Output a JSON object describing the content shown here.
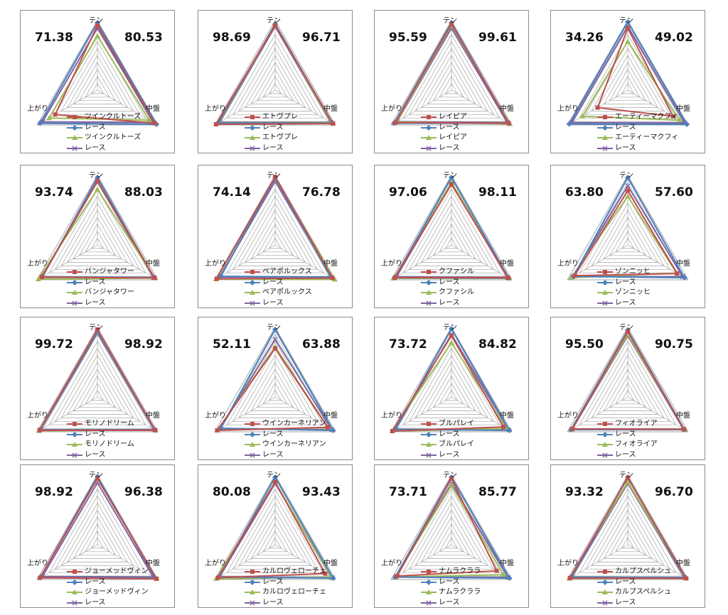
{
  "axes": [
    "テン",
    "中盤",
    "上がり"
  ],
  "colors": {
    "grid": "#a6a6a6",
    "horse": "#c0504d",
    "race": "#4f81bd",
    "horse_normalized": "#9bbb59",
    "race_normalized": "#8064a2"
  },
  "legend_race_label": "レース",
  "chart_data": [
    {
      "type": "radar",
      "title": "ツインクルトーズ",
      "left_score": "71.38",
      "right_score": "80.53",
      "series": [
        {
          "name": "ツインクルトーズ",
          "values": [
            93,
            95,
            70
          ]
        },
        {
          "name": "レース",
          "values": [
            97,
            98,
            95
          ]
        },
        {
          "name": "ツインクルトーズ",
          "values": [
            78,
            86,
            80
          ]
        },
        {
          "name": "レース",
          "values": [
            89,
            93,
            91
          ]
        }
      ]
    },
    {
      "type": "radar",
      "title": "エトヴプレ",
      "left_score": "98.69",
      "right_score": "96.71",
      "series": [
        {
          "name": "エトヴプレ",
          "values": [
            93,
            96,
            98
          ]
        },
        {
          "name": "レース",
          "values": [
            95,
            95,
            94
          ]
        },
        {
          "name": "エトヴプレ",
          "values": [
            94,
            93,
            93
          ]
        },
        {
          "name": "レース",
          "values": [
            92,
            92,
            92
          ]
        }
      ]
    },
    {
      "type": "radar",
      "title": "レイピア",
      "left_score": "95.59",
      "right_score": "99.61",
      "series": [
        {
          "name": "レイピア",
          "values": [
            95,
            95,
            93
          ]
        },
        {
          "name": "レース",
          "values": [
            97,
            95,
            95
          ]
        },
        {
          "name": "レイピア",
          "values": [
            93,
            97,
            91
          ]
        },
        {
          "name": "レース",
          "values": [
            89,
            93,
            90
          ]
        }
      ]
    },
    {
      "type": "radar",
      "title": "エーティーマクフィ",
      "left_score": "34.26",
      "right_score": "49.02",
      "series": [
        {
          "name": "エーティーマクフィ",
          "values": [
            89,
            75,
            50
          ]
        },
        {
          "name": "レース",
          "values": [
            98,
            98,
            97
          ]
        },
        {
          "name": "エーティーマクフィ",
          "values": [
            70,
            86,
            75
          ]
        },
        {
          "name": "レース",
          "values": [
            92,
            94,
            93
          ]
        }
      ]
    },
    {
      "type": "radar",
      "title": "バンジャタワー",
      "left_score": "93.74",
      "right_score": "88.03",
      "series": [
        {
          "name": "バンジャタワー",
          "values": [
            92,
            95,
            92
          ]
        },
        {
          "name": "レース",
          "values": [
            97,
            94,
            91
          ]
        },
        {
          "name": "バンジャタワー",
          "values": [
            80,
            95,
            98
          ]
        },
        {
          "name": "レース",
          "values": [
            91,
            93,
            93
          ]
        }
      ]
    },
    {
      "type": "radar",
      "title": "ペアポルックス",
      "left_score": "74.14",
      "right_score": "76.78",
      "series": [
        {
          "name": "ペアポルックス",
          "values": [
            98,
            95,
            97
          ]
        },
        {
          "name": "レース",
          "values": [
            97,
            92,
            90
          ]
        },
        {
          "name": "ペアポルックス",
          "values": [
            96,
            99,
            98
          ]
        },
        {
          "name": "レース",
          "values": [
            92,
            94,
            92
          ]
        }
      ]
    },
    {
      "type": "radar",
      "title": "クファシル",
      "left_score": "97.06",
      "right_score": "98.11",
      "series": [
        {
          "name": "クファシル",
          "values": [
            87,
            94,
            94
          ]
        },
        {
          "name": "レース",
          "values": [
            97,
            95,
            94
          ]
        },
        {
          "name": "クファシル",
          "values": [
            90,
            96,
            96
          ]
        },
        {
          "name": "レース",
          "values": [
            89,
            93,
            91
          ]
        }
      ]
    },
    {
      "type": "radar",
      "title": "ゾンニッヒ",
      "left_score": "63.80",
      "right_score": "57.60",
      "series": [
        {
          "name": "ゾンニッヒ",
          "values": [
            78,
            82,
            88
          ]
        },
        {
          "name": "レース",
          "values": [
            97,
            94,
            90
          ]
        },
        {
          "name": "ゾンニッヒ",
          "values": [
            70,
            81,
            94
          ]
        },
        {
          "name": "レース",
          "values": [
            85,
            91,
            91
          ]
        }
      ]
    },
    {
      "type": "radar",
      "title": "モリノドリーム",
      "left_score": "99.72",
      "right_score": "98.92",
      "series": [
        {
          "name": "モリノドリーム",
          "values": [
            97,
            96,
            96
          ]
        },
        {
          "name": "レース",
          "values": [
            95,
            95,
            95
          ]
        },
        {
          "name": "モリノドリーム",
          "values": [
            94,
            95,
            97
          ]
        },
        {
          "name": "レース",
          "values": [
            92,
            94,
            94
          ]
        }
      ]
    },
    {
      "type": "radar",
      "title": "ウインカーネリアン",
      "left_score": "52.11",
      "right_score": "63.88",
      "series": [
        {
          "name": "ウインカーネリアン",
          "values": [
            70,
            87,
            96
          ]
        },
        {
          "name": "レース",
          "values": [
            97,
            96,
            90
          ]
        },
        {
          "name": "ウインカーネリアン",
          "values": [
            72,
            88,
            96
          ]
        },
        {
          "name": "レース",
          "values": [
            83,
            94,
            91
          ]
        }
      ]
    },
    {
      "type": "radar",
      "title": "ブルパレイ",
      "left_score": "73.72",
      "right_score": "84.82",
      "series": [
        {
          "name": "ブルパレイ",
          "values": [
            88,
            86,
            98
          ]
        },
        {
          "name": "レース",
          "values": [
            98,
            96,
            93
          ]
        },
        {
          "name": "ブルパレイ",
          "values": [
            78,
            91,
            98
          ]
        },
        {
          "name": "レース",
          "values": [
            90,
            95,
            93
          ]
        }
      ]
    },
    {
      "type": "radar",
      "title": "フィオライア",
      "left_score": "95.50",
      "right_score": "90.75",
      "series": [
        {
          "name": "フィオライア",
          "values": [
            94,
            93,
            92
          ]
        },
        {
          "name": "レース",
          "values": [
            96,
            94,
            94
          ]
        },
        {
          "name": "フィオライア",
          "values": [
            90,
            94,
            94
          ]
        },
        {
          "name": "レース",
          "values": [
            88,
            93,
            92
          ]
        }
      ]
    },
    {
      "type": "radar",
      "title": "ジョーメッドヴィン",
      "left_score": "98.92",
      "right_score": "96.38",
      "series": [
        {
          "name": "ジョーメッドヴィン",
          "values": [
            95,
            98,
            95
          ]
        },
        {
          "name": "レース",
          "values": [
            98,
            96,
            95
          ]
        },
        {
          "name": "ジョーメッドヴィン",
          "values": [
            95,
            98,
            95
          ]
        },
        {
          "name": "レース",
          "values": [
            89,
            93,
            91
          ]
        }
      ]
    },
    {
      "type": "radar",
      "title": "カルロヴェローチェ",
      "left_score": "80.08",
      "right_score": "93.43",
      "series": [
        {
          "name": "カルロヴェローチェ",
          "values": [
            90,
            83,
            95
          ]
        },
        {
          "name": "レース",
          "values": [
            97,
            96,
            93
          ]
        },
        {
          "name": "カルロヴェローチェ",
          "values": [
            90,
            93,
            98
          ]
        },
        {
          "name": "レース",
          "values": [
            88,
            95,
            92
          ]
        }
      ]
    },
    {
      "type": "radar",
      "title": "ナムラクララ",
      "left_score": "73.71",
      "right_score": "85.77",
      "series": [
        {
          "name": "ナムラクララ",
          "values": [
            95,
            75,
            90
          ]
        },
        {
          "name": "レース",
          "values": [
            97,
            96,
            93
          ]
        },
        {
          "name": "ナムラクララ",
          "values": [
            85,
            86,
            93
          ]
        },
        {
          "name": "レース",
          "values": [
            88,
            94,
            92
          ]
        }
      ]
    },
    {
      "type": "radar",
      "title": "カルプスペルシュ",
      "left_score": "93.32",
      "right_score": "96.70",
      "series": [
        {
          "name": "カルプスペルシュ",
          "values": [
            96,
            97,
            96
          ]
        },
        {
          "name": "レース",
          "values": [
            97,
            95,
            93
          ]
        },
        {
          "name": "カルプスペルシュ",
          "values": [
            90,
            96,
            97
          ]
        },
        {
          "name": "レース",
          "values": [
            88,
            94,
            93
          ]
        }
      ]
    }
  ]
}
